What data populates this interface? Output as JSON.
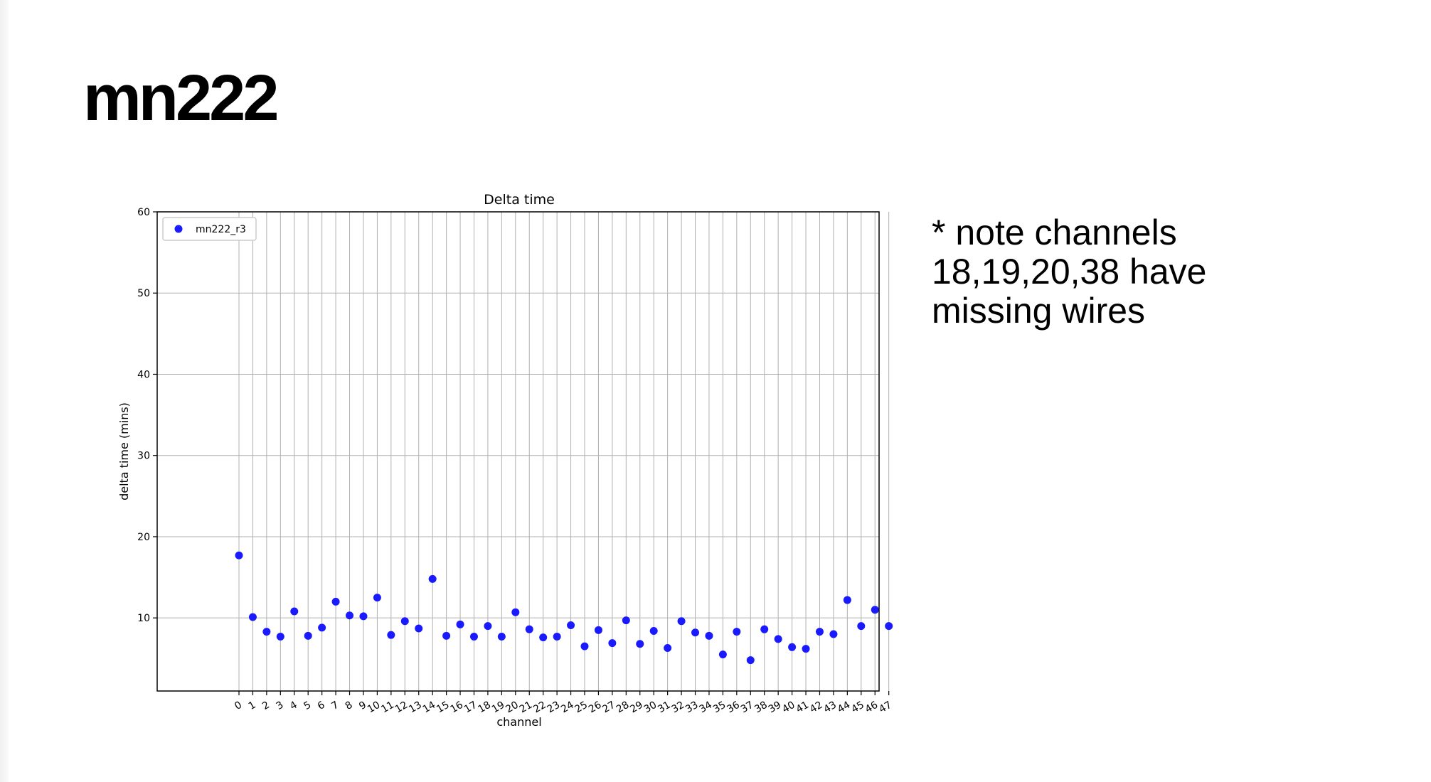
{
  "slide": {
    "title": "mn222",
    "note_lines": [
      "* note channels",
      "18,19,20,38 have",
      "missing wires"
    ]
  },
  "colors": {
    "point": "#1a1aff",
    "grid": "#b0b0b0",
    "axis": "#000000"
  },
  "chart_data": {
    "type": "scatter",
    "title": "Delta time",
    "xlabel": "channel",
    "ylabel": "delta time (mins)",
    "ylim": [
      1,
      60
    ],
    "yticks": [
      10,
      20,
      30,
      40,
      50,
      60
    ],
    "grid": true,
    "legend_position": "upper left",
    "categories": [
      "0",
      "1",
      "2",
      "3",
      "4",
      "5",
      "6",
      "7",
      "8",
      "9",
      "10",
      "11",
      "12",
      "13",
      "14",
      "15",
      "16",
      "17",
      "18",
      "19",
      "20",
      "21",
      "22",
      "23",
      "24",
      "25",
      "26",
      "27",
      "28",
      "29",
      "30",
      "31",
      "32",
      "33",
      "34",
      "35",
      "36",
      "37",
      "38",
      "39",
      "40",
      "41",
      "42",
      "43",
      "44",
      "45",
      "46",
      "47"
    ],
    "series": [
      {
        "name": "mn222_r3",
        "values": [
          17.7,
          10.1,
          8.3,
          7.7,
          10.8,
          7.8,
          8.8,
          12.0,
          10.3,
          10.2,
          12.5,
          7.9,
          9.6,
          8.7,
          14.8,
          7.8,
          9.2,
          7.7,
          9.0,
          7.7,
          10.7,
          8.6,
          7.6,
          7.7,
          9.1,
          6.5,
          8.5,
          6.9,
          9.7,
          6.8,
          8.4,
          6.3,
          9.6,
          8.2,
          7.8,
          5.5,
          8.3,
          4.8,
          8.6,
          7.4,
          6.4,
          6.2,
          8.3,
          8.0,
          12.2,
          9.0,
          11.0,
          9.0
        ]
      }
    ]
  }
}
